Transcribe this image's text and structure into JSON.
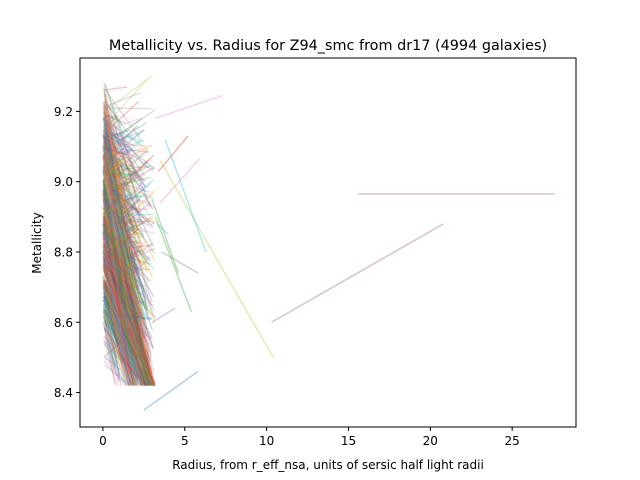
{
  "chart_data": {
    "type": "line",
    "title": "Metallicity vs. Radius for Z94_smc from dr17 (4994 galaxies)",
    "xlabel": "Radius, from r_eff_nsa, units of sersic half light radii",
    "ylabel": "Metallicity",
    "xlim": [
      -1.4,
      28.9
    ],
    "ylim": [
      8.302,
      9.352
    ],
    "xticks": [
      0,
      5,
      10,
      15,
      20,
      25
    ],
    "yticks": [
      8.4,
      8.6,
      8.8,
      9.0,
      9.2
    ],
    "xtick_labels": [
      "0",
      "5",
      "10",
      "15",
      "20",
      "25"
    ],
    "ytick_labels": [
      "8.4",
      "8.6",
      "8.8",
      "9.0",
      "9.2"
    ],
    "grid": false,
    "legend": "none",
    "line_alpha": 0.25,
    "colors": [
      "#1f77b4",
      "#8c564b",
      "#2ca02c",
      "#9467bd",
      "#bcbd22",
      "#d62728",
      "#17becf",
      "#e377c2",
      "#7f7f7f",
      "#ff7f0e"
    ],
    "cluster": {
      "galaxies_drawn": 900,
      "x_range": [
        0,
        3.2
      ],
      "y_center": 8.9,
      "y_spread": 0.42
    },
    "outlier_segments": [
      {
        "x": [
          15.6,
          27.6
        ],
        "y": [
          8.965,
          8.965
        ],
        "color": "#8c564b"
      },
      {
        "x": [
          10.3,
          20.8
        ],
        "y": [
          8.6,
          8.88
        ],
        "color": "#8c564b"
      },
      {
        "x": [
          3.5,
          10.4
        ],
        "y": [
          9.06,
          8.5
        ],
        "color": "#bcbd22"
      },
      {
        "x": [
          2.5,
          5.8
        ],
        "y": [
          8.35,
          8.46
        ],
        "color": "#1f77b4"
      },
      {
        "x": [
          3.2,
          7.3
        ],
        "y": [
          9.18,
          9.245
        ],
        "color": "#e377c2"
      },
      {
        "x": [
          3.5,
          5.9
        ],
        "y": [
          8.94,
          9.065
        ],
        "color": "#e377c2"
      },
      {
        "x": [
          3.4,
          5.2
        ],
        "y": [
          9.03,
          9.13
        ],
        "color": "#d62728"
      },
      {
        "x": [
          3.8,
          6.3
        ],
        "y": [
          9.12,
          8.8
        ],
        "color": "#17becf"
      },
      {
        "x": [
          3.2,
          5.4
        ],
        "y": [
          8.9,
          8.63
        ],
        "color": "#2ca02c"
      },
      {
        "x": [
          3.6,
          5.8
        ],
        "y": [
          8.8,
          8.74
        ],
        "color": "#7f7f7f"
      },
      {
        "x": [
          3.0,
          4.6
        ],
        "y": [
          8.95,
          8.74
        ],
        "color": "#2ca02c"
      },
      {
        "x": [
          3.0,
          4.4
        ],
        "y": [
          8.6,
          8.64
        ],
        "color": "#9467bd"
      },
      {
        "x": [
          3.3,
          4.0
        ],
        "y": [
          8.88,
          8.85
        ],
        "color": "#17becf"
      },
      {
        "x": [
          1.0,
          2.9
        ],
        "y": [
          9.14,
          8.93
        ],
        "color": "#9467bd"
      },
      {
        "x": [
          0.8,
          3.0
        ],
        "y": [
          8.62,
          8.61
        ],
        "color": "#1f77b4"
      }
    ]
  }
}
